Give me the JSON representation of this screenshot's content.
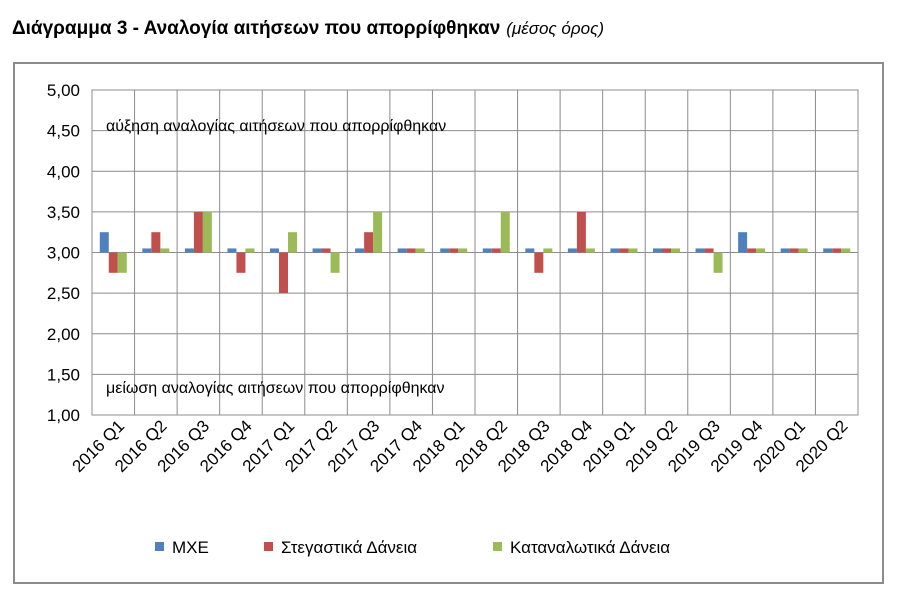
{
  "title": "Διάγραμμα 3 - Αναλογία αιτήσεων που απορρίφθηκαν",
  "subtitle": "(μέσος όρος)",
  "chart_data": {
    "type": "bar",
    "categories": [
      "2016 Q1",
      "2016 Q2",
      "2016 Q3",
      "2016 Q4",
      "2017 Q1",
      "2017 Q2",
      "2017 Q3",
      "2017 Q4",
      "2018 Q1",
      "2018 Q2",
      "2018 Q3",
      "2018 Q4",
      "2019 Q1",
      "2019 Q2",
      "2019 Q3",
      "2019 Q4",
      "2020 Q1",
      "2020 Q2"
    ],
    "baseline": 3.0,
    "ylim": [
      1.0,
      5.0
    ],
    "yticks": [
      "1,00",
      "1,50",
      "2,00",
      "2,50",
      "3,00",
      "3,50",
      "4,00",
      "4,50",
      "5,00"
    ],
    "grid": true,
    "legend_position": "bottom",
    "series": [
      {
        "name": "ΜΧΕ",
        "color": "#4f81bd",
        "values": [
          3.25,
          3.05,
          3.05,
          3.05,
          3.05,
          3.05,
          3.05,
          3.05,
          3.05,
          3.05,
          3.05,
          3.05,
          3.05,
          3.05,
          3.05,
          3.25,
          3.05,
          3.05
        ]
      },
      {
        "name": "Στεγαστικά Δάνεια",
        "color": "#c0504d",
        "values": [
          2.75,
          3.25,
          3.5,
          2.75,
          2.5,
          3.05,
          3.25,
          3.05,
          3.05,
          3.05,
          2.75,
          3.5,
          3.05,
          3.05,
          3.05,
          3.05,
          3.05,
          3.05
        ]
      },
      {
        "name": "Καταναλωτικά Δάνεια",
        "color": "#9bbb59",
        "values": [
          2.75,
          3.05,
          3.5,
          3.05,
          3.25,
          2.75,
          3.5,
          3.05,
          3.05,
          3.5,
          3.05,
          3.05,
          3.05,
          3.05,
          2.75,
          3.05,
          3.05,
          3.05
        ]
      }
    ],
    "annotations": {
      "top": "αύξηση αναλογίας αιτήσεων που απορρίφθηκαν",
      "bottom": "μείωση αναλογίας αιτήσεων που απορρίφθηκαν"
    }
  }
}
